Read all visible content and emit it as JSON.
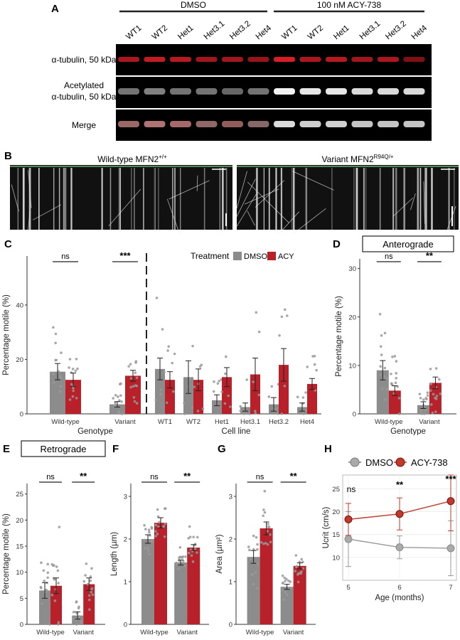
{
  "panel_a": {
    "letter": "A",
    "group_dmso": "DMSO",
    "group_acy": "100 nM ACY-738",
    "lanes": [
      "WT1",
      "WT2",
      "Het1",
      "Het3.1",
      "Het3.2",
      "Het4",
      "WT1",
      "WT2",
      "Het1",
      "Het3.1",
      "Het3.2",
      "Het4"
    ],
    "rows": [
      "α-tubulin, 50 kDa",
      "Acetylated\nα-tubulin, 50 kDa",
      "Merge"
    ],
    "band_intensity": {
      "alpha": [
        0.75,
        0.85,
        0.8,
        0.7,
        0.7,
        0.65,
        0.95,
        0.75,
        0.8,
        0.7,
        0.75,
        0.55
      ],
      "acet": [
        0.45,
        0.5,
        0.45,
        0.45,
        0.4,
        0.45,
        0.95,
        0.9,
        0.9,
        0.85,
        0.85,
        0.85
      ]
    }
  },
  "panel_b": {
    "letter": "B",
    "left_title": "Wild-type MFN2",
    "left_sup": "+/+",
    "right_title": "Variant MFN2",
    "right_sup": "R94Q/+"
  },
  "colors": {
    "dmso": "#8c8c8c",
    "acy": "#b8202a",
    "acy_line": "#c0392b"
  },
  "chart_data": [
    {
      "panel": "C",
      "type": "bar",
      "legend_title": "Treatment",
      "legend": [
        "DMSO",
        "ACY"
      ],
      "ylabel": "Percentage motile (%)",
      "ylim": [
        0,
        58
      ],
      "yticks": [
        0,
        20,
        40
      ],
      "left": {
        "xlabel": "Genotype",
        "categories": [
          "Wild-type",
          "Variant"
        ],
        "series": [
          {
            "name": "DMSO",
            "values": [
              15.5,
              3.5
            ]
          },
          {
            "name": "ACY",
            "values": [
              12.5,
              14
            ]
          }
        ],
        "errors": [
          [
            3,
            1
          ],
          [
            2.5,
            2
          ]
        ],
        "sig": [
          "ns",
          "***"
        ]
      },
      "right": {
        "xlabel": "Cell line",
        "categories": [
          "WT1",
          "WT2",
          "Het1",
          "Het3.1",
          "Het3.2",
          "Het4"
        ],
        "series": [
          {
            "name": "DMSO",
            "values": [
              16.5,
              13.5,
              5,
              2.5,
              3.5,
              2.5
            ]
          },
          {
            "name": "ACY",
            "values": [
              12.5,
              12.5,
              13.5,
              14.5,
              18,
              11
            ]
          }
        ],
        "errors": [
          [
            4,
            6,
            2,
            1.5,
            2.5,
            1.5
          ],
          [
            3,
            4,
            3.5,
            6,
            6,
            2
          ]
        ]
      }
    },
    {
      "panel": "D",
      "type": "bar",
      "title": "Anterograde",
      "xlabel": "Genotype",
      "ylabel": "Percentage motile (%)",
      "ylim": [
        0,
        32
      ],
      "yticks": [
        0,
        10,
        20,
        30
      ],
      "categories": [
        "Wild-type",
        "Variant"
      ],
      "series": [
        {
          "name": "DMSO",
          "values": [
            9,
            1.8
          ]
        },
        {
          "name": "ACY",
          "values": [
            4.8,
            6.4
          ]
        }
      ],
      "errors": [
        [
          2,
          0.7
        ],
        [
          1,
          1.2
        ]
      ],
      "sig": [
        "ns",
        "**"
      ]
    },
    {
      "panel": "E",
      "type": "bar",
      "title": "Retrograde",
      "ylabel": "Percentage motile (%)",
      "ylim": [
        0,
        27
      ],
      "yticks": [
        0,
        5,
        10,
        15,
        20,
        25
      ],
      "categories": [
        "Wild-type",
        "Variant"
      ],
      "series": [
        {
          "name": "DMSO",
          "values": [
            6.5,
            1.7
          ]
        },
        {
          "name": "ACY",
          "values": [
            7.4,
            7.7
          ]
        }
      ],
      "errors": [
        [
          1.5,
          0.7
        ],
        [
          1.5,
          1.2
        ]
      ],
      "sig": [
        "ns",
        "**"
      ]
    },
    {
      "panel": "F",
      "type": "bar",
      "ylabel": "Length (µm)",
      "ylim": [
        0,
        3.3
      ],
      "yticks": [
        0,
        1,
        2,
        3
      ],
      "categories": [
        "Wild-type",
        "Variant"
      ],
      "series": [
        {
          "name": "DMSO",
          "values": [
            2.0,
            1.45
          ]
        },
        {
          "name": "ACY",
          "values": [
            2.38,
            1.8
          ]
        }
      ],
      "errors": [
        [
          0.1,
          0.06
        ],
        [
          0.12,
          0.07
        ]
      ],
      "sig": [
        "ns",
        "**"
      ]
    },
    {
      "panel": "G",
      "type": "bar",
      "ylabel": "Area (µm²)",
      "ylim": [
        0,
        3.3
      ],
      "yticks": [
        0,
        1,
        2,
        3
      ],
      "categories": [
        "Wild-type",
        "Variant"
      ],
      "series": [
        {
          "name": "DMSO",
          "values": [
            1.58,
            0.88
          ]
        },
        {
          "name": "ACY",
          "values": [
            2.25,
            1.37
          ]
        }
      ],
      "errors": [
        [
          0.15,
          0.06
        ],
        [
          0.15,
          0.07
        ]
      ],
      "sig": [
        "ns",
        "**"
      ]
    },
    {
      "panel": "H",
      "type": "line",
      "xlabel": "Age (months)",
      "ylabel": "Ucrit (cm/s)",
      "x": [
        5,
        6,
        7
      ],
      "ylim": [
        5,
        28
      ],
      "yticks": [
        10,
        15,
        20,
        25
      ],
      "series": [
        {
          "name": "DMSO",
          "values": [
            14,
            12.2,
            12
          ],
          "err": [
            6,
            2.5,
            6
          ]
        },
        {
          "name": "ACY-738",
          "values": [
            18.3,
            19.5,
            22.3
          ],
          "err": [
            3.5,
            3.5,
            6.5
          ]
        }
      ],
      "sig": [
        "ns",
        "**",
        "***"
      ]
    }
  ]
}
